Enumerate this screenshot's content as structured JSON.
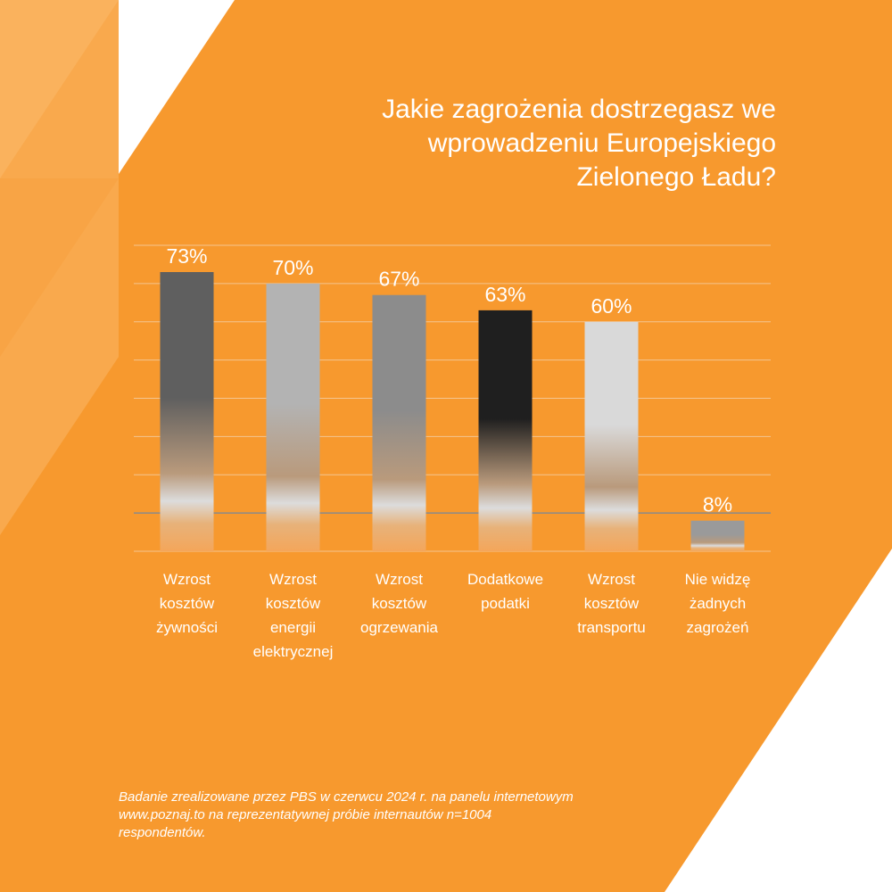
{
  "chart_data": {
    "type": "bar",
    "title": "Jakie zagrożenia dostrzegasz we\nwprowadzeniu Europejskiego\nZielonego Ładu?",
    "categories": [
      "Wzrost\nkosztów\nżywności",
      "Wzrost\nkosztów\nenergii\nelektrycznej",
      "Wzrost\nkosztów\nogrzewania",
      "Dodatkowe\npodatki",
      "Wzrost\nkosztów\ntransportu",
      "Nie widzę\nżadnych\nzagrożeń"
    ],
    "values": [
      73,
      70,
      67,
      63,
      60,
      8
    ],
    "value_labels": [
      "73%",
      "70%",
      "67%",
      "63%",
      "60%",
      "8%"
    ],
    "ylim": [
      0,
      80
    ],
    "grid": true,
    "legend": "none",
    "bar_colors": [
      "#5f5f5f",
      "#b3b3b3",
      "#8c8c8c",
      "#1f1f1f",
      "#d9d9d9",
      "#9a9a9a"
    ]
  },
  "footnote": "Badanie zrealizowane przez PBS w czerwcu 2024 r. na panelu internetowym\nwww.poznaj.to na reprezentatywnej próbie internautów n=1004\nrespondentów.",
  "colors": {
    "background": "#f7992e",
    "shape_light": "#f9aa4f",
    "white": "#ffffff",
    "gridline": "#f4c590",
    "baseline": "#8a8a8a"
  }
}
